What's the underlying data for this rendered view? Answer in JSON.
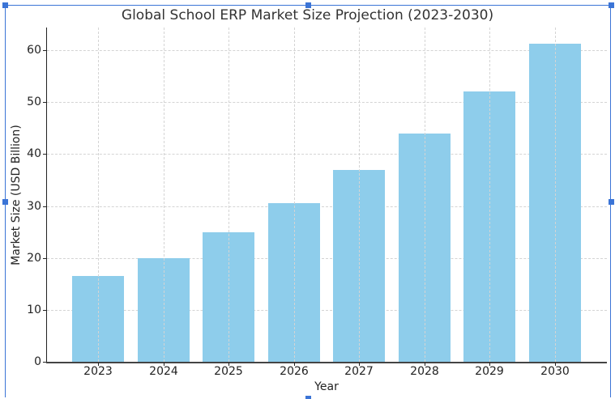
{
  "chart_data": {
    "type": "bar",
    "title": "Global School ERP Market Size Projection (2023-2030)",
    "xlabel": "Year",
    "ylabel": "Market Size (USD Billion)",
    "categories": [
      "2023",
      "2024",
      "2025",
      "2026",
      "2027",
      "2028",
      "2029",
      "2030"
    ],
    "values": [
      16.5,
      20,
      25,
      30.5,
      37,
      44,
      52,
      61.3
    ],
    "ylim": [
      0,
      64
    ],
    "yticks": [
      0,
      10,
      20,
      30,
      40,
      50,
      60
    ],
    "grid": true,
    "bar_color": "#8ecdeb"
  }
}
